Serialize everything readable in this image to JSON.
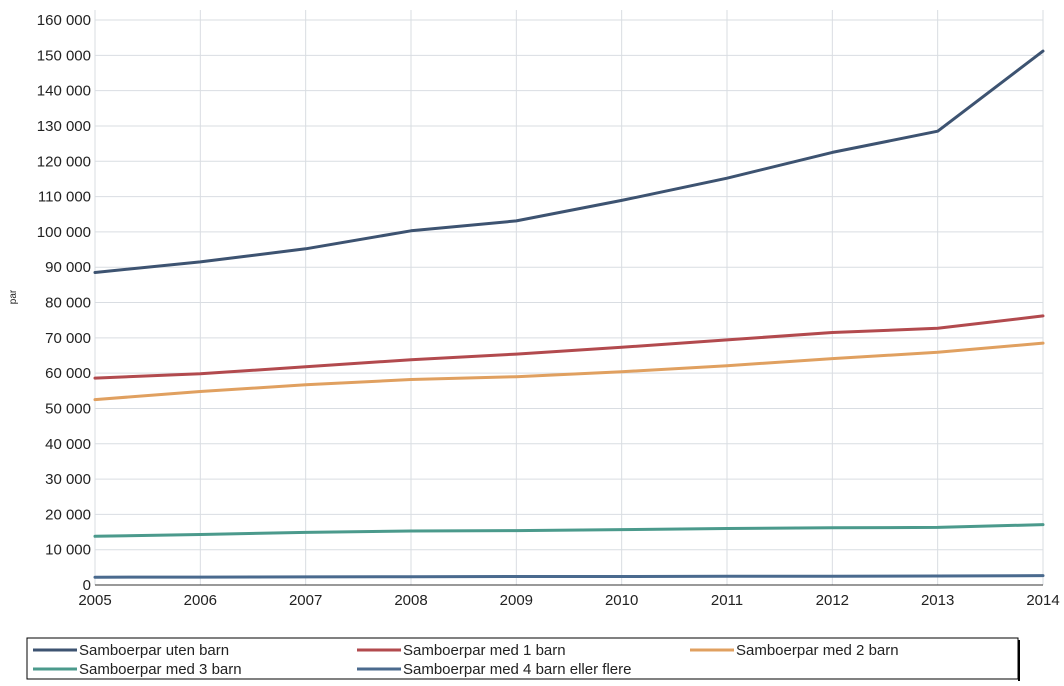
{
  "chart_data": {
    "type": "line",
    "title": "",
    "xlabel": "",
    "ylabel": "par",
    "x": [
      2005,
      2006,
      2007,
      2008,
      2009,
      2010,
      2011,
      2012,
      2013,
      2014
    ],
    "ylim": [
      0,
      160000
    ],
    "yticks": [
      0,
      10000,
      20000,
      30000,
      40000,
      50000,
      60000,
      70000,
      80000,
      90000,
      100000,
      110000,
      120000,
      130000,
      140000,
      150000,
      160000
    ],
    "ytick_labels": [
      "0",
      "10 000",
      "20 000",
      "30 000",
      "40 000",
      "50 000",
      "60 000",
      "70 000",
      "80 000",
      "90 000",
      "100 000",
      "110 000",
      "120 000",
      "130 000",
      "140 000",
      "150 000",
      "160 000"
    ],
    "xtick_labels": [
      "2005",
      "2006",
      "2007",
      "2008",
      "2009",
      "2010",
      "2011",
      "2012",
      "2013",
      "2014"
    ],
    "grid": true,
    "legend_position": "bottom",
    "series": [
      {
        "name": "Samboerpar uten barn",
        "color": "#3d5371",
        "values": [
          88500,
          91500,
          95200,
          100300,
          103100,
          108900,
          115200,
          122500,
          128500,
          151200
        ]
      },
      {
        "name": "Samboerpar med 1 barn",
        "color": "#b24a4e",
        "values": [
          58600,
          59800,
          61800,
          63800,
          65400,
          67300,
          69400,
          71500,
          72700,
          76200
        ]
      },
      {
        "name": "Samboerpar med 2 barn",
        "color": "#e0a060",
        "values": [
          52500,
          54800,
          56700,
          58200,
          59000,
          60400,
          62100,
          64100,
          65900,
          68500
        ]
      },
      {
        "name": "Samboerpar med 3 barn",
        "color": "#4b9a8c",
        "values": [
          13800,
          14300,
          14900,
          15300,
          15400,
          15700,
          16000,
          16200,
          16300,
          17100
        ]
      },
      {
        "name": "Samboerpar med 4 barn eller flere",
        "color": "#4a6a8e",
        "values": [
          2200,
          2250,
          2300,
          2350,
          2400,
          2400,
          2450,
          2500,
          2550,
          2650
        ]
      }
    ]
  }
}
